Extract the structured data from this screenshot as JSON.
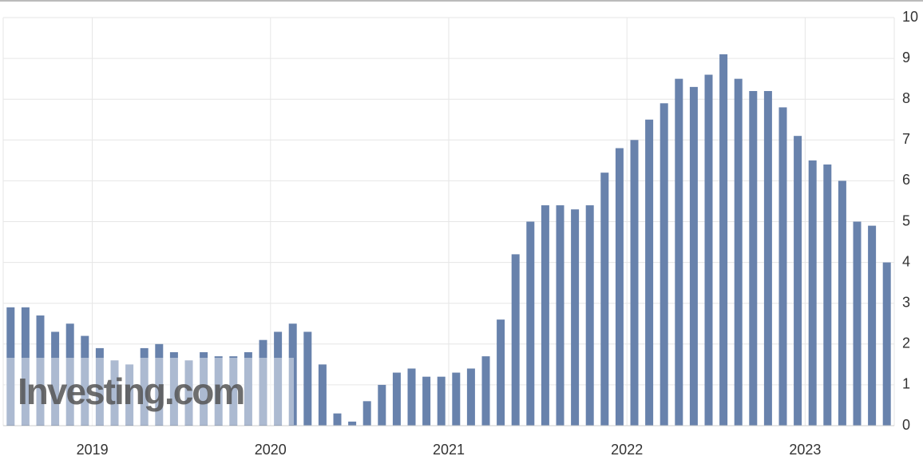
{
  "chart_data": {
    "type": "bar",
    "categories": [
      null,
      null,
      null,
      null,
      null,
      null,
      "2019",
      null,
      null,
      null,
      null,
      null,
      null,
      null,
      null,
      null,
      null,
      null,
      "2020",
      null,
      null,
      null,
      null,
      null,
      null,
      null,
      null,
      null,
      null,
      null,
      "2021",
      null,
      null,
      null,
      null,
      null,
      null,
      null,
      null,
      null,
      null,
      null,
      "2022",
      null,
      null,
      null,
      null,
      null,
      null,
      null,
      null,
      null,
      null,
      null,
      "2023",
      null,
      null,
      null,
      null,
      null
    ],
    "values": [
      2.9,
      2.9,
      2.7,
      2.3,
      2.5,
      2.2,
      1.9,
      1.6,
      1.5,
      1.9,
      2.0,
      1.8,
      1.6,
      1.8,
      1.7,
      1.7,
      1.8,
      2.1,
      2.3,
      2.5,
      2.3,
      1.5,
      0.3,
      0.1,
      0.6,
      1.0,
      1.3,
      1.4,
      1.2,
      1.2,
      1.3,
      1.4,
      1.7,
      2.6,
      4.2,
      5.0,
      5.4,
      5.4,
      5.3,
      5.4,
      6.2,
      6.8,
      7.0,
      7.5,
      7.9,
      8.5,
      8.3,
      8.6,
      9.1,
      8.5,
      8.2,
      8.2,
      7.8,
      7.1,
      6.5,
      6.4,
      6.0,
      5.0,
      4.9,
      4.0
    ],
    "color": "#6882ac",
    "ylim": [
      0,
      10
    ],
    "yticks": [
      0,
      1,
      2,
      3,
      4,
      5,
      6,
      7,
      8,
      9,
      10
    ],
    "grid": true,
    "y_axis_side": "right",
    "watermark": "Investing.com"
  }
}
